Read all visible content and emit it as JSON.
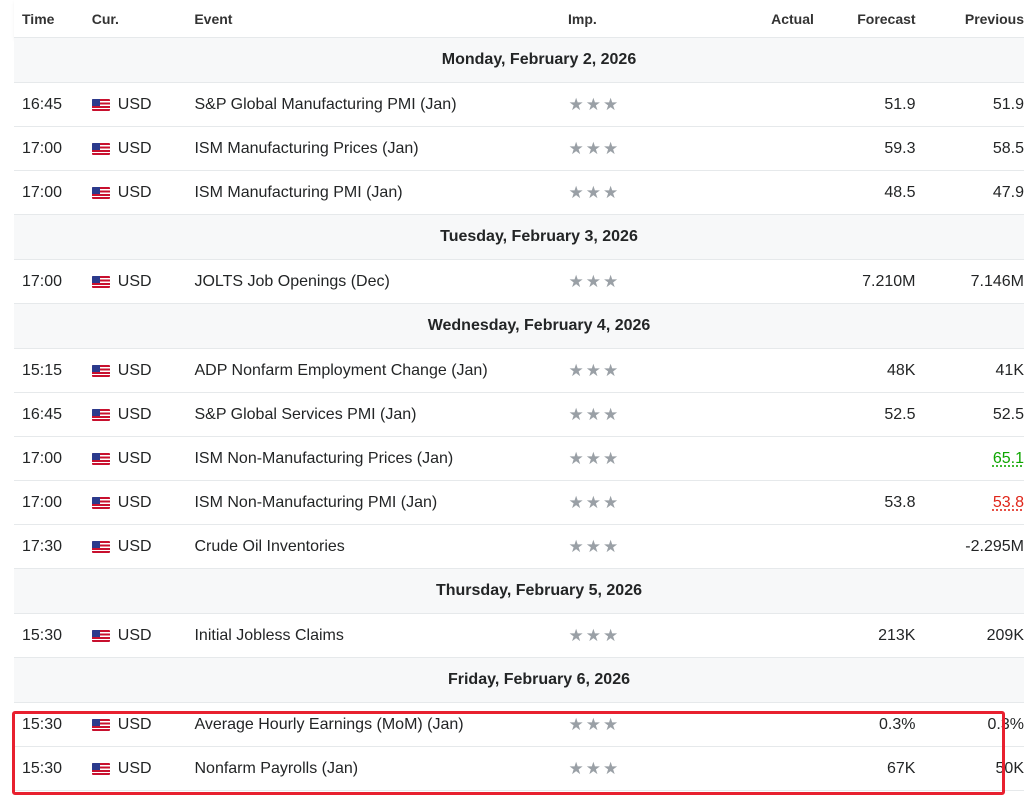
{
  "header": {
    "time": "Time",
    "currency": "Cur.",
    "event": "Event",
    "importance": "Imp.",
    "actual": "Actual",
    "forecast": "Forecast",
    "previous": "Previous"
  },
  "colors": {
    "positive": "#0ea600",
    "negative": "#e0261a",
    "highlight": "#e8202f"
  },
  "days": [
    {
      "date": "Monday, February 2, 2026",
      "events": [
        {
          "time": "16:45",
          "currency": "USD",
          "event": "S&P Global Manufacturing PMI  (Jan)",
          "actual": "",
          "forecast": "51.9",
          "previous": "51.9",
          "prev_state": ""
        },
        {
          "time": "17:00",
          "currency": "USD",
          "event": "ISM Manufacturing Prices  (Jan)",
          "actual": "",
          "forecast": "59.3",
          "previous": "58.5",
          "prev_state": ""
        },
        {
          "time": "17:00",
          "currency": "USD",
          "event": "ISM Manufacturing PMI  (Jan)",
          "actual": "",
          "forecast": "48.5",
          "previous": "47.9",
          "prev_state": ""
        }
      ]
    },
    {
      "date": "Tuesday, February 3, 2026",
      "events": [
        {
          "time": "17:00",
          "currency": "USD",
          "event": "JOLTS Job Openings  (Dec)",
          "actual": "",
          "forecast": "7.210M",
          "previous": "7.146M",
          "prev_state": ""
        }
      ]
    },
    {
      "date": "Wednesday, February 4, 2026",
      "events": [
        {
          "time": "15:15",
          "currency": "USD",
          "event": "ADP Nonfarm Employment Change  (Jan)",
          "actual": "",
          "forecast": "48K",
          "previous": "41K",
          "prev_state": ""
        },
        {
          "time": "16:45",
          "currency": "USD",
          "event": "S&P Global Services PMI  (Jan)",
          "actual": "",
          "forecast": "52.5",
          "previous": "52.5",
          "prev_state": ""
        },
        {
          "time": "17:00",
          "currency": "USD",
          "event": "ISM Non-Manufacturing Prices  (Jan)",
          "actual": "",
          "forecast": "",
          "previous": "65.1",
          "prev_state": "positive"
        },
        {
          "time": "17:00",
          "currency": "USD",
          "event": "ISM Non-Manufacturing PMI  (Jan)",
          "actual": "",
          "forecast": "53.8",
          "previous": "53.8",
          "prev_state": "negative"
        },
        {
          "time": "17:30",
          "currency": "USD",
          "event": "Crude Oil Inventories",
          "actual": "",
          "forecast": "",
          "previous": "-2.295M",
          "prev_state": ""
        }
      ]
    },
    {
      "date": "Thursday, February 5, 2026",
      "events": [
        {
          "time": "15:30",
          "currency": "USD",
          "event": "Initial Jobless Claims",
          "actual": "",
          "forecast": "213K",
          "previous": "209K",
          "prev_state": ""
        }
      ]
    },
    {
      "date": "Friday, February 6, 2026",
      "events": [
        {
          "time": "15:30",
          "currency": "USD",
          "event": "Average Hourly Earnings (MoM) (Jan)",
          "actual": "",
          "forecast": "0.3%",
          "previous": "0.3%",
          "prev_state": ""
        },
        {
          "time": "15:30",
          "currency": "USD",
          "event": "Nonfarm Payrolls  (Jan)",
          "actual": "",
          "forecast": "67K",
          "previous": "50K",
          "prev_state": ""
        }
      ]
    }
  ],
  "icons": {
    "flag": "us-flag-icon",
    "star": "star-icon",
    "star_glyph": "★"
  }
}
